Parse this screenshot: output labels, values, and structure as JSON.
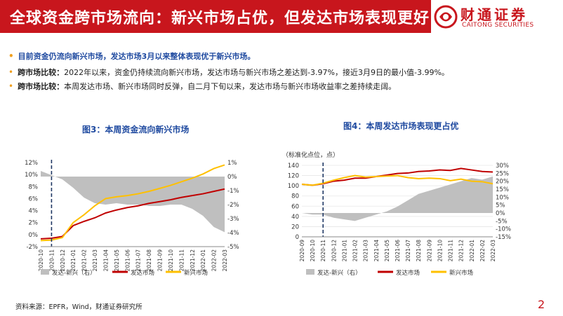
{
  "header": {
    "title": "全球资金跨市场流向：新兴市场占优，但发达市场表现更好"
  },
  "logo": {
    "name_cn": "财通证券",
    "name_en": "CAITONG SECURITIES"
  },
  "bullets": [
    {
      "label": "",
      "text": "目前资金仍流向新兴市场，发达市场3月以来整体表现优于新兴市场。"
    },
    {
      "label": "跨市场比较：",
      "text": "2022年以来，资金仍持续流向新兴市场，发达市场与新兴市场之差达到-3.97%，接近3月9日的最小值-3.99%。"
    },
    {
      "label": "跨市场比较：",
      "text": "本周发达市场、新兴市场同时反弹，自二月下旬以来，发达市场与新兴市场收益率之差持续走阔。"
    }
  ],
  "figure3": {
    "title": "图3：本周资金流向新兴市场"
  },
  "figure4": {
    "title": "图4：本周发达市场表现更占优"
  },
  "footer": {
    "source": "资料来源：EPFR，Wind，财通证券研究所",
    "page": "2"
  },
  "colors": {
    "brand_red": "#c8161d",
    "dm_line": "#c00000",
    "em_line": "#ffc000",
    "diff_area": "#bfbfbf",
    "title_blue": "#1f4aa0",
    "marker": "#1f3864"
  },
  "chart_data": [
    {
      "type": "area",
      "title": "图3：本周资金流向新兴市场",
      "x": [
        "2020-10",
        "2020-11",
        "2020-12",
        "2021-01",
        "2021-02",
        "2021-03",
        "2021-04",
        "2021-05",
        "2021-06",
        "2021-07",
        "2021-08",
        "2021-09",
        "2021-10",
        "2021-11",
        "2021-12",
        "2022-01",
        "2022-02",
        "2022-03"
      ],
      "x_tick_labels": [
        "2020-10",
        "2020-11",
        "2020-12",
        "2021-01",
        "2021-02",
        "2021-03",
        "2021-04",
        "2021-05",
        "2021-06",
        "2021-07",
        "2021-08",
        "2021-09",
        "2021-10",
        "2021-11",
        "2021-12",
        "2022-01",
        "2022-02",
        "2022-03"
      ],
      "y_left": {
        "ticks": [
          "-2%",
          "0%",
          "2%",
          "4%",
          "6%",
          "8%",
          "10%",
          "12%"
        ],
        "range": [
          -2,
          12
        ]
      },
      "y_right": {
        "ticks": [
          "-5%",
          "-4%",
          "-3%",
          "-2%",
          "-1%",
          "0%",
          "1%"
        ],
        "range": [
          -5,
          1
        ]
      },
      "series": [
        {
          "name": "发达-新兴（右）",
          "type": "area",
          "axis": "right",
          "values": [
            0.4,
            0.1,
            -0.2,
            -0.8,
            -1.5,
            -1.9,
            -2.0,
            -1.9,
            -2.0,
            -2.0,
            -2.1,
            -2.1,
            -2.0,
            -2.0,
            -2.3,
            -2.8,
            -3.6,
            -3.97
          ]
        },
        {
          "name": "发达市场",
          "type": "line",
          "axis": "left",
          "values": [
            -0.7,
            -0.6,
            -0.3,
            1.5,
            2.2,
            2.8,
            3.6,
            4.1,
            4.5,
            4.8,
            5.2,
            5.5,
            5.8,
            6.2,
            6.5,
            6.8,
            7.2,
            7.6
          ]
        },
        {
          "name": "新兴市场",
          "type": "line",
          "axis": "left",
          "values": [
            -1.0,
            -0.9,
            -0.5,
            2.0,
            3.3,
            4.8,
            6.0,
            6.3,
            6.5,
            6.8,
            7.2,
            7.7,
            8.2,
            8.8,
            9.4,
            10.1,
            11.0,
            11.6
          ]
        }
      ],
      "marker_x": "2020-11",
      "legend": {
        "position": "bottom",
        "items": [
          "发达-新兴（右）",
          "发达市场",
          "新兴市场"
        ]
      }
    },
    {
      "type": "area",
      "title": "图4：本周发达市场表现更占优",
      "unit_label": "（标准化点位，点）",
      "x": [
        "2020-09",
        "2020-10",
        "2020-11",
        "2020-12",
        "2021-01",
        "2021-02",
        "2021-03",
        "2021-04",
        "2021-05",
        "2021-06",
        "2021-07",
        "2021-08",
        "2021-09",
        "2021-10",
        "2021-11",
        "2021-12",
        "2022-01",
        "2022-02",
        "2022-03"
      ],
      "x_tick_labels": [
        "2020-09",
        "2020-10",
        "2020-11",
        "2020-12",
        "2021-01",
        "2021-02",
        "2021-03",
        "2021-04",
        "2021-05",
        "2021-06",
        "2021-07",
        "2021-08",
        "2021-09",
        "2021-10",
        "2021-11",
        "2021-12",
        "2022-01",
        "2022-02",
        "2022-03"
      ],
      "y_left": {
        "ticks": [
          "0",
          "20",
          "40",
          "60",
          "80",
          "100",
          "120",
          "140"
        ],
        "range": [
          0,
          140
        ]
      },
      "y_right": {
        "ticks": [
          "-15%",
          "-10%",
          "-5%",
          "0%",
          "5%",
          "10%",
          "15%",
          "20%",
          "25%",
          "30%"
        ],
        "range": [
          -15,
          30
        ]
      },
      "series": [
        {
          "name": "发达-新兴（右）",
          "type": "area",
          "axis": "right",
          "values": [
            0,
            -1,
            -1,
            -3,
            -4,
            -5,
            -3,
            -1,
            1,
            4,
            8,
            12,
            14,
            16,
            18,
            20,
            22,
            21,
            23
          ]
        },
        {
          "name": "发达市场",
          "type": "line",
          "axis": "left",
          "values": [
            103,
            101,
            104,
            109,
            111,
            115,
            115,
            118,
            121,
            124,
            125,
            128,
            129,
            131,
            130,
            134,
            131,
            128,
            127
          ]
        },
        {
          "name": "新兴市场",
          "type": "line",
          "axis": "left",
          "values": [
            103,
            101,
            105,
            111,
            116,
            120,
            117,
            118,
            119,
            120,
            116,
            114,
            115,
            114,
            110,
            113,
            109,
            108,
            104
          ]
        }
      ],
      "marker_x": "2020-11",
      "legend": {
        "position": "bottom",
        "items": [
          "发达-新兴（右）",
          "发达市场",
          "新兴市场"
        ]
      }
    }
  ]
}
